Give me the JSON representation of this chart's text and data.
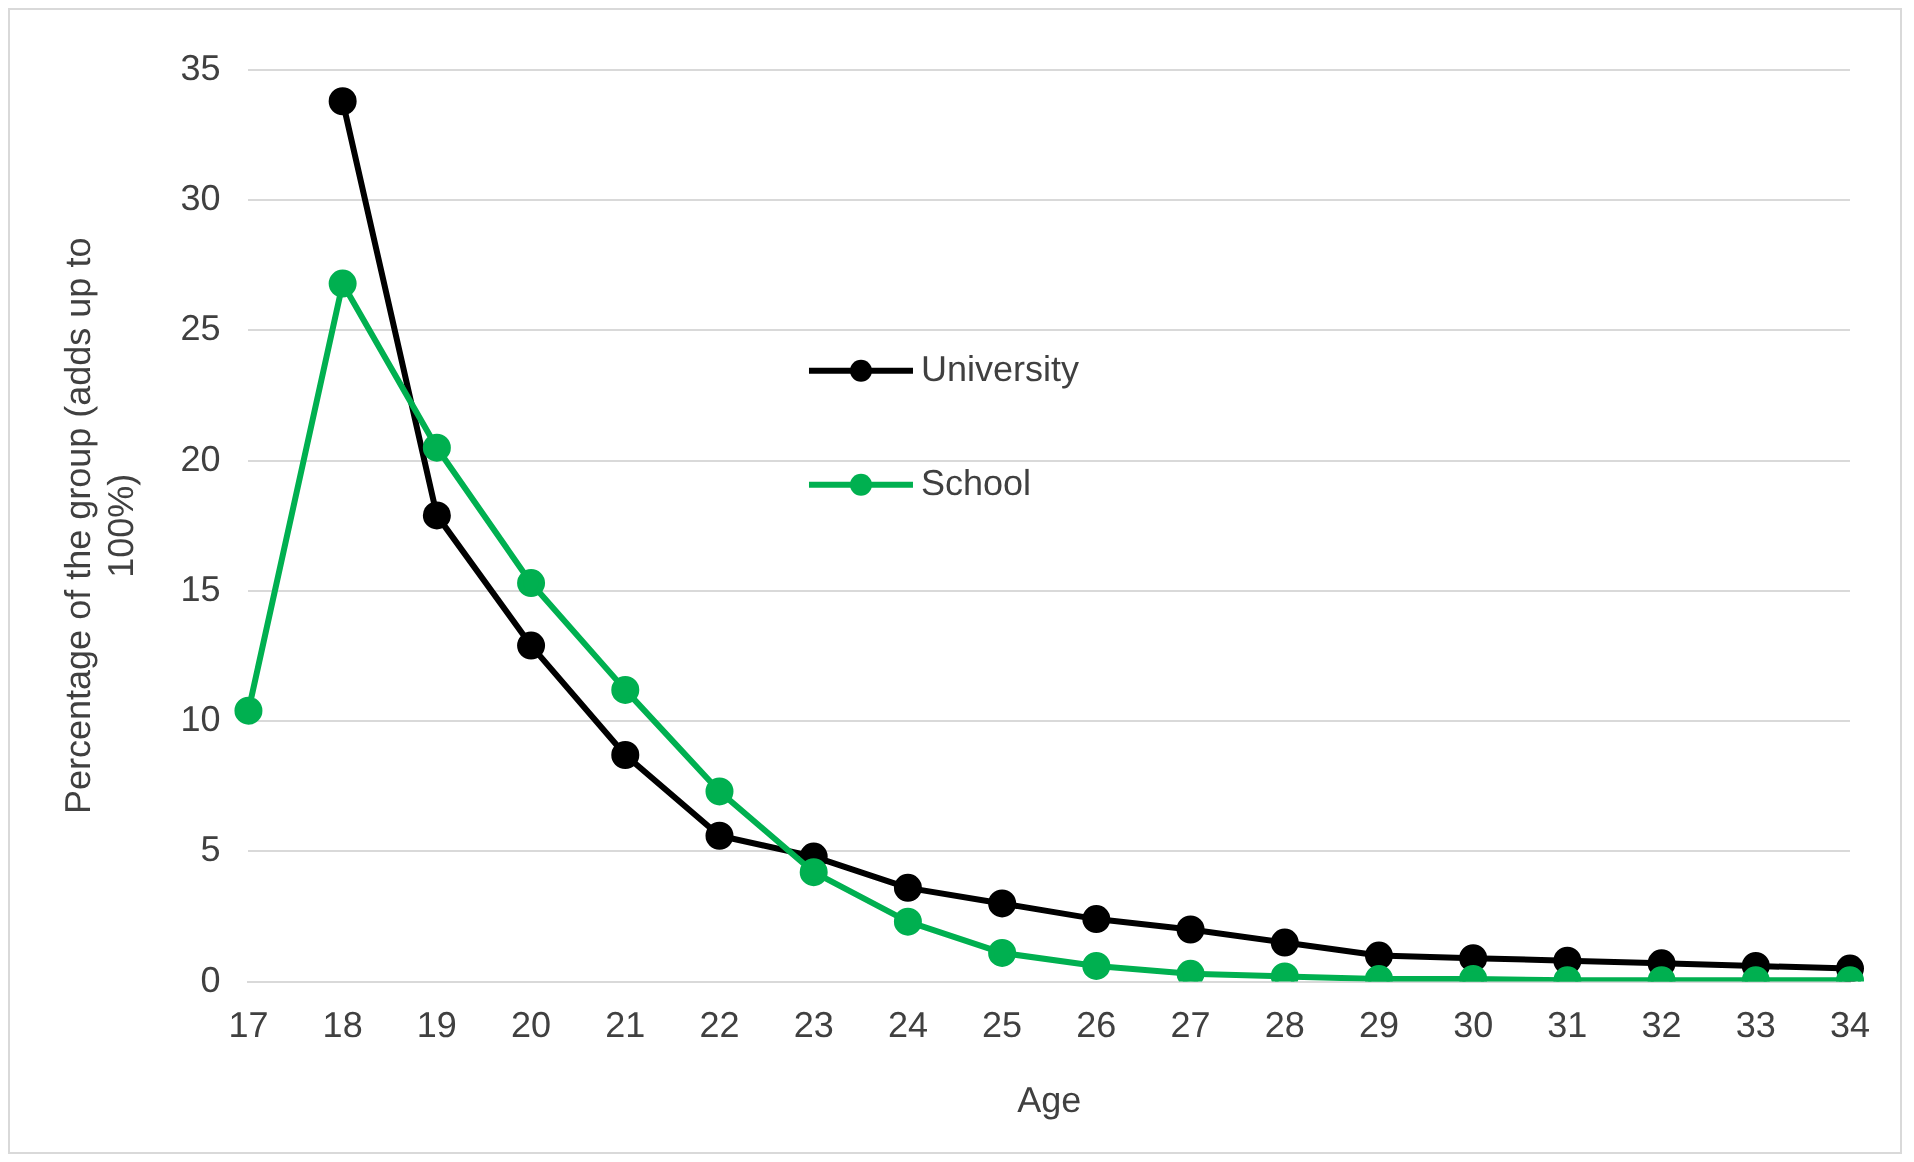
{
  "chart_data": {
    "type": "line",
    "xlabel": "Age",
    "ylabel": "Percentage of the group (adds up to 100%)",
    "categories": [
      "17",
      "18",
      "19",
      "20",
      "21",
      "22",
      "23",
      "24",
      "25",
      "26",
      "27",
      "28",
      "29",
      "30",
      "31",
      "32",
      "33",
      "34"
    ],
    "series": [
      {
        "name": "University",
        "color": "#000000",
        "values": [
          null,
          33.8,
          17.9,
          12.9,
          8.7,
          5.6,
          4.8,
          3.6,
          3.0,
          2.4,
          2.0,
          1.5,
          1.0,
          0.9,
          0.8,
          0.7,
          0.6,
          0.5
        ]
      },
      {
        "name": "School",
        "color": "#00b050",
        "values": [
          10.4,
          26.8,
          20.5,
          15.3,
          11.2,
          7.3,
          4.2,
          2.3,
          1.1,
          0.6,
          0.3,
          0.2,
          0.1,
          0.1,
          0.05,
          0.05,
          0.05,
          0.05
        ]
      }
    ],
    "ylim": [
      0,
      35
    ],
    "yticks": [
      0,
      5,
      10,
      15,
      20,
      25,
      30,
      35
    ],
    "grid": "y",
    "legend": "top",
    "marker": "circle",
    "line_style": "solid"
  }
}
